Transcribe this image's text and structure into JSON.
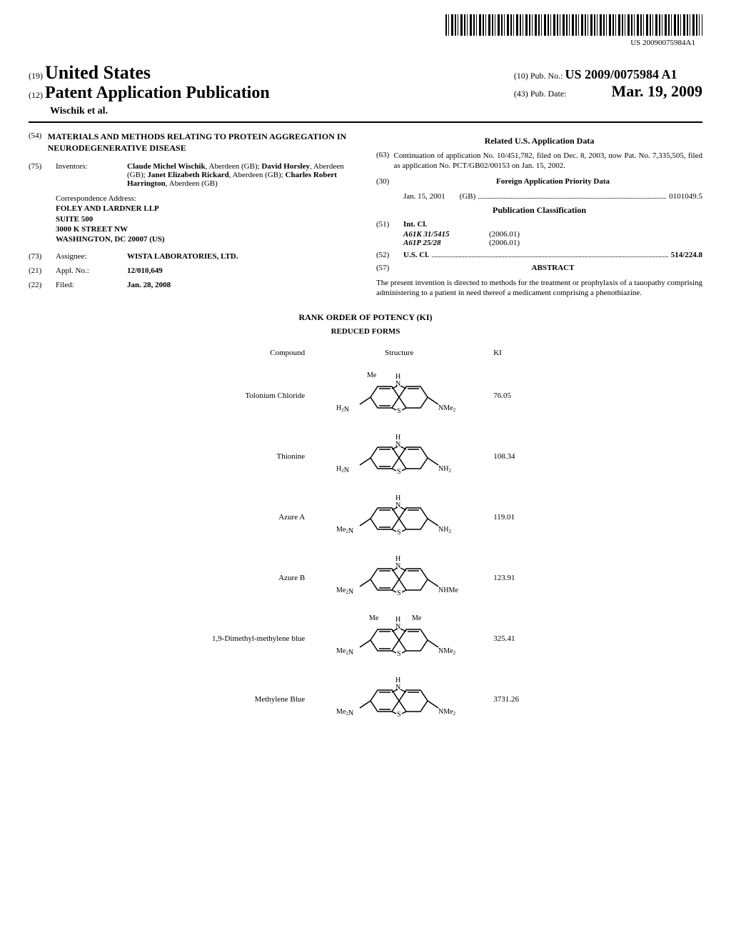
{
  "barcode_number": "US 20090075984A1",
  "header": {
    "code_19": "(19)",
    "country": "United States",
    "code_12": "(12)",
    "pub_type": "Patent Application Publication",
    "authors": "Wischik et al.",
    "code_10": "(10)",
    "pub_no_label": "Pub. No.:",
    "pub_no": "US 2009/0075984 A1",
    "code_43": "(43)",
    "pub_date_label": "Pub. Date:",
    "pub_date": "Mar. 19, 2009"
  },
  "left_col": {
    "code_54": "(54)",
    "title": "MATERIALS AND METHODS RELATING TO PROTEIN AGGREGATION IN NEURODEGENERATIVE DISEASE",
    "code_75": "(75)",
    "inventors_label": "Inventors:",
    "inventors": [
      {
        "name": "Claude Michel Wischik",
        "loc": "Aberdeen (GB)"
      },
      {
        "name": "David Horsley",
        "loc": "Aberdeen (GB)"
      },
      {
        "name": "Janet Elizabeth Rickard",
        "loc": "Aberdeen (GB)"
      },
      {
        "name": "Charles Robert Harrington",
        "loc": "Aberdeen (GB)"
      }
    ],
    "corr_label": "Correspondence Address:",
    "corr_lines": [
      "FOLEY AND LARDNER LLP",
      "SUITE 500",
      "3000 K STREET NW",
      "WASHINGTON, DC 20007 (US)"
    ],
    "code_73": "(73)",
    "assignee_label": "Assignee:",
    "assignee": "WISTA LABORATORIES, LTD.",
    "code_21": "(21)",
    "appl_no_label": "Appl. No.:",
    "appl_no": "12/010,649",
    "code_22": "(22)",
    "filed_label": "Filed:",
    "filed": "Jan. 28, 2008"
  },
  "right_col": {
    "related_header": "Related U.S. Application Data",
    "code_63": "(63)",
    "continuation": "Continuation of application No. 10/451,782, filed on Dec. 8, 2003, now Pat. No. 7,335,505, filed as application No. PCT/GB02/00153 on Jan. 15, 2002.",
    "code_30": "(30)",
    "foreign_header": "Foreign Application Priority Data",
    "foreign_date": "Jan. 15, 2001",
    "foreign_country": "(GB)",
    "foreign_num": "0101049.5",
    "pubclass_header": "Publication Classification",
    "code_51": "(51)",
    "intcl_label": "Int. Cl.",
    "intcl": [
      {
        "code": "A61K 31/5415",
        "year": "(2006.01)"
      },
      {
        "code": "A61P 25/28",
        "year": "(2006.01)"
      }
    ],
    "code_52": "(52)",
    "uscl_label": "U.S. Cl.",
    "uscl_val": "514/224.8",
    "code_57": "(57)",
    "abstract_label": "ABSTRACT",
    "abstract": "The present invention is directed to methods for the treatment or prophylaxis of a tauopathy comprising administering to a patient in need thereof a medicament comprising a phenothiazine."
  },
  "figure": {
    "title": "RANK ORDER OF POTENCY (KI)",
    "subtitle": "REDUCED FORMS",
    "col_compound": "Compound",
    "col_structure": "Structure",
    "col_ki": "KI",
    "compounds": [
      {
        "name": "Tolonium Chloride",
        "ki": "76.05",
        "top_me": true,
        "left": "H₂N",
        "right": "NMe₂"
      },
      {
        "name": "Thionine",
        "ki": "108.34",
        "top_me": false,
        "left": "H₂N",
        "right": "NH₂"
      },
      {
        "name": "Azure A",
        "ki": "119.01",
        "top_me": false,
        "left": "Me₂N",
        "right": "NH₂"
      },
      {
        "name": "Azure B",
        "ki": "123.91",
        "top_me": false,
        "left": "Me₂N",
        "right": "NHMe"
      },
      {
        "name": "1,9-Dimethyl-methylene blue",
        "ki": "325.41",
        "top_me": "double",
        "left": "Me₂N",
        "right": "NMe₂"
      },
      {
        "name": "Methylene Blue",
        "ki": "3731.26",
        "top_me": false,
        "left": "Me₂N",
        "right": "NMe₂"
      }
    ]
  }
}
